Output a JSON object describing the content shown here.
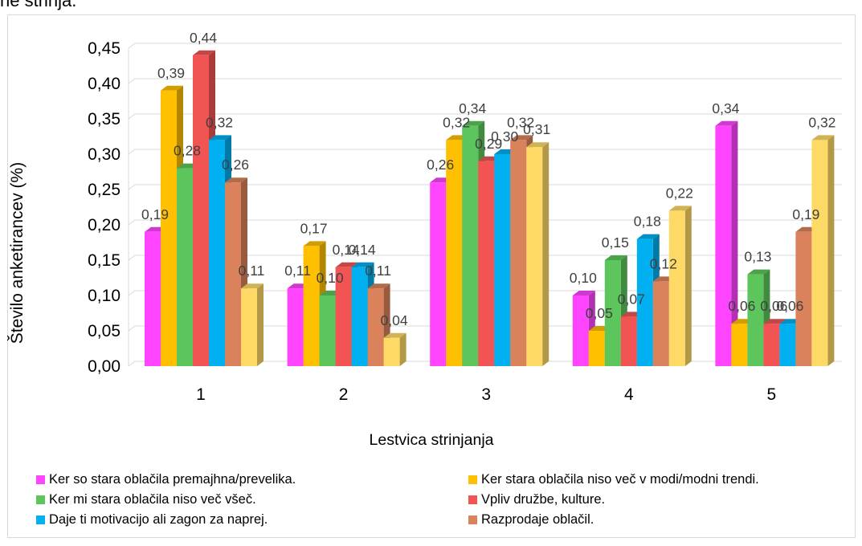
{
  "page": {
    "top_title_fragment": "ne strinja."
  },
  "chart_data": {
    "type": "bar",
    "categories": [
      "1",
      "2",
      "3",
      "4",
      "5"
    ],
    "series": [
      {
        "name": "Ker so stara oblačila premajhna/prevelika.",
        "color": "#ff44ff",
        "values": [
          0.19,
          0.11,
          0.26,
          0.1,
          0.34
        ],
        "labels": [
          "0,19",
          "0,11",
          "0,26",
          "0,10",
          "0,34"
        ]
      },
      {
        "name": "Ker stara oblačila niso več v modi/modni trendi.",
        "color": "#ffc000",
        "values": [
          0.39,
          0.17,
          0.32,
          0.05,
          0.06
        ],
        "labels": [
          "0,39",
          "0,17",
          "0,32",
          "0,05",
          "0,06"
        ]
      },
      {
        "name": "Ker mi stara oblačila niso več všeč.",
        "color": "#5cc65c",
        "values": [
          0.28,
          0.1,
          0.34,
          0.15,
          0.13
        ],
        "labels": [
          "0,28",
          "0,10",
          "0,34",
          "0,15",
          "0,13"
        ]
      },
      {
        "name": "Vpliv družbe, kulture.",
        "color": "#f25454",
        "values": [
          0.44,
          0.14,
          0.29,
          0.07,
          0.06
        ],
        "labels": [
          "0,44",
          "0,14",
          "0,29",
          "0,07",
          "0,06"
        ]
      },
      {
        "name": "Daje ti motivacijo ali zagon za naprej.",
        "color": "#00b0f0",
        "values": [
          0.32,
          0.14,
          0.3,
          0.18,
          0.06
        ],
        "labels": [
          "0,32",
          "0,14",
          "0,30",
          "0,18",
          "0,06"
        ]
      },
      {
        "name": "Razprodaje oblačil.",
        "color": "#d9825b",
        "values": [
          0.26,
          0.11,
          0.32,
          0.12,
          0.19
        ],
        "labels": [
          "0,26",
          "0,11",
          "0,32",
          "0,12",
          "0,19"
        ]
      },
      {
        "name": "",
        "color": "#ffd966",
        "values": [
          0.11,
          0.04,
          0.31,
          0.22,
          0.32
        ],
        "labels": [
          "0,11",
          "0,04",
          "0,31",
          "0,22",
          "0,32"
        ]
      }
    ],
    "xlabel": "Lestvica strinjanja",
    "ylabel": "Število anketirancev (%)",
    "ylim": [
      0,
      0.45
    ],
    "yticks": [
      "0,00",
      "0,05",
      "0,10",
      "0,15",
      "0,20",
      "0,25",
      "0,30",
      "0,35",
      "0,40",
      "0,45"
    ],
    "grid": true,
    "legend": "bottom",
    "style": "3d-column"
  }
}
